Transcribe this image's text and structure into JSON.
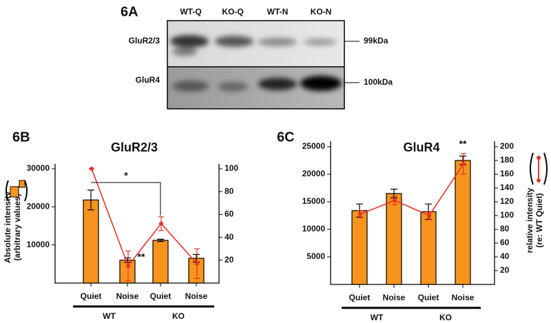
{
  "blot": {
    "panel": "6A",
    "lanes": [
      "WT-Q",
      "KO-Q",
      "WT-N",
      "KO-N"
    ],
    "rows": [
      {
        "label": "GluR2/3",
        "size": "99kDa"
      },
      {
        "label": "GluR4",
        "size": "100kDa"
      }
    ]
  },
  "chart_data": [
    {
      "type": "bar",
      "panel": "6B",
      "title": "GluR2/3",
      "ylabel": [
        "Absolute intensity",
        "(arbitrary values)"
      ],
      "categories": [
        "Quiet",
        "Noise",
        "Quiet",
        "Noise"
      ],
      "groups": [
        "WT",
        "KO"
      ],
      "series": [
        {
          "type": "bar",
          "color": "#f7941d",
          "values": [
            21800,
            6000,
            11200,
            6500
          ],
          "errors": [
            2600,
            600,
            300,
            1000
          ]
        },
        {
          "type": "line",
          "axis": "y2",
          "color": "#e8332a",
          "values": [
            100,
            15,
            52,
            17
          ],
          "errors": [
            0,
            13,
            6,
            13
          ]
        }
      ],
      "ylim": [
        0,
        30000
      ],
      "yticks": [
        10000,
        20000,
        30000
      ],
      "y2lim": [
        0,
        100
      ],
      "y2ticks": [
        20,
        40,
        60,
        80,
        100
      ],
      "annotations": [
        "*",
        "**"
      ]
    },
    {
      "type": "bar",
      "panel": "6C",
      "title": "GluR4",
      "y2label": [
        "relative intensity",
        "(re: WT Quiet)"
      ],
      "categories": [
        "Quiet",
        "Noise",
        "Quiet",
        "Noise"
      ],
      "groups": [
        "WT",
        "KO"
      ],
      "series": [
        {
          "type": "bar",
          "color": "#f7941d",
          "values": [
            13400,
            16500,
            13200,
            22500
          ],
          "errors": [
            1200,
            800,
            1400,
            800
          ]
        },
        {
          "type": "line",
          "axis": "y2",
          "color": "#e8332a",
          "values": [
            102,
            122,
            100,
            175
          ],
          "errors": [
            5,
            6,
            5,
            15
          ]
        }
      ],
      "ylim": [
        0,
        25000
      ],
      "yticks": [
        5000,
        10000,
        15000,
        20000,
        25000
      ],
      "y2lim": [
        0,
        200
      ],
      "y2ticks": [
        20,
        40,
        60,
        80,
        100,
        120,
        140,
        160,
        180,
        200
      ],
      "annotations": [
        "**"
      ]
    }
  ]
}
